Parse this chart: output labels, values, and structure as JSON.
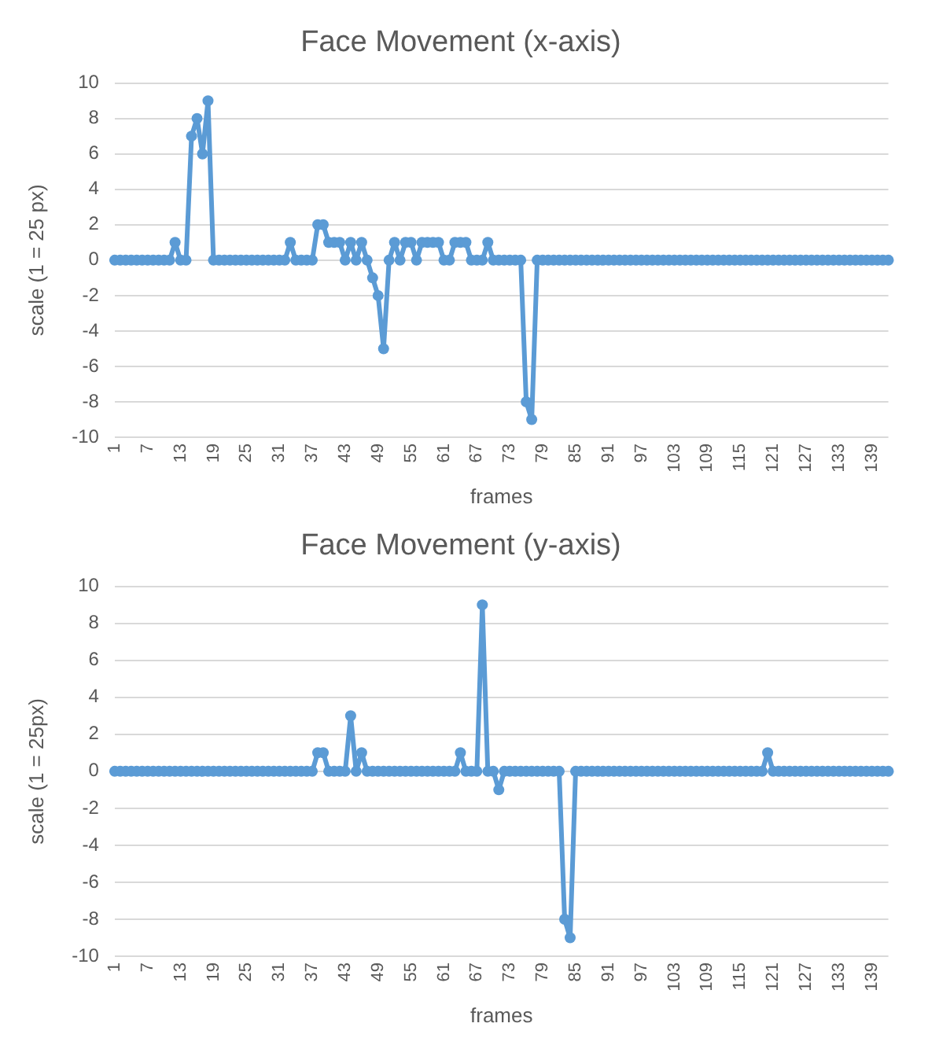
{
  "chart_data": [
    {
      "type": "line",
      "title": "Face Movement (x-axis)",
      "xlabel": "frames",
      "ylabel": "scale (1 = 25 px)",
      "categories": [
        "1",
        null,
        null,
        null,
        null,
        null,
        "7",
        null,
        null,
        null,
        null,
        null,
        "13",
        null,
        null,
        null,
        null,
        null,
        "19",
        null,
        null,
        null,
        null,
        null,
        "25",
        null,
        null,
        null,
        null,
        null,
        "31",
        null,
        null,
        null,
        null,
        null,
        "37",
        null,
        null,
        null,
        null,
        null,
        "43",
        null,
        null,
        null,
        null,
        null,
        "49",
        null,
        null,
        null,
        null,
        null,
        "55",
        null,
        null,
        null,
        null,
        null,
        "61",
        null,
        null,
        null,
        null,
        null,
        "67",
        null,
        null,
        null,
        null,
        null,
        "73",
        null,
        null,
        null,
        null,
        null,
        "79",
        null,
        null,
        null,
        null,
        null,
        "85",
        null,
        null,
        null,
        null,
        null,
        "91",
        null,
        null,
        null,
        null,
        null,
        "97",
        null,
        null,
        null,
        null,
        null,
        "103",
        null,
        null,
        null,
        null,
        null,
        "109",
        null,
        null,
        null,
        null,
        null,
        "115",
        null,
        null,
        null,
        null,
        null,
        "121",
        null,
        null,
        null,
        null,
        null,
        "127",
        null,
        null,
        null,
        null,
        null,
        "133",
        null,
        null,
        null,
        null,
        null,
        "139",
        null,
        null,
        null
      ],
      "values": [
        0,
        0,
        0,
        0,
        0,
        0,
        0,
        0,
        0,
        0,
        0,
        1,
        0,
        0,
        7,
        8,
        6,
        9,
        0,
        0,
        0,
        0,
        0,
        0,
        0,
        0,
        0,
        0,
        0,
        0,
        0,
        0,
        1,
        0,
        0,
        0,
        0,
        2,
        2,
        1,
        1,
        1,
        0,
        1,
        0,
        1,
        0,
        -1,
        -2,
        -5,
        0,
        1,
        0,
        1,
        1,
        0,
        1,
        1,
        1,
        1,
        0,
        0,
        1,
        1,
        1,
        0,
        0,
        0,
        1,
        0,
        0,
        0,
        0,
        0,
        0,
        -8,
        -9,
        0,
        0,
        0,
        0,
        0,
        0,
        0,
        0,
        0,
        0,
        0,
        0,
        0,
        0,
        0,
        0,
        0,
        0,
        0,
        0,
        0,
        0,
        0,
        0,
        0,
        0,
        0,
        0,
        0,
        0,
        0,
        0,
        0,
        0,
        0,
        0,
        0,
        0,
        0,
        0,
        0,
        0,
        0,
        0,
        0,
        0,
        0,
        0,
        0,
        0,
        0,
        0,
        0,
        0,
        0,
        0,
        0,
        0,
        0,
        0,
        0,
        0,
        0,
        0,
        0
      ],
      "color": "#5b9bd5",
      "ylim": [
        -10,
        10
      ],
      "yticks": [
        -10,
        -8,
        -6,
        -4,
        -2,
        0,
        2,
        4,
        6,
        8,
        10
      ],
      "grid": "y",
      "marker": "circle"
    },
    {
      "type": "line",
      "title": "Face Movement (y-axis)",
      "xlabel": "frames",
      "ylabel": "scale (1 = 25px)",
      "categories": [
        "1",
        null,
        null,
        null,
        null,
        null,
        "7",
        null,
        null,
        null,
        null,
        null,
        "13",
        null,
        null,
        null,
        null,
        null,
        "19",
        null,
        null,
        null,
        null,
        null,
        "25",
        null,
        null,
        null,
        null,
        null,
        "31",
        null,
        null,
        null,
        null,
        null,
        "37",
        null,
        null,
        null,
        null,
        null,
        "43",
        null,
        null,
        null,
        null,
        null,
        "49",
        null,
        null,
        null,
        null,
        null,
        "55",
        null,
        null,
        null,
        null,
        null,
        "61",
        null,
        null,
        null,
        null,
        null,
        "67",
        null,
        null,
        null,
        null,
        null,
        "73",
        null,
        null,
        null,
        null,
        null,
        "79",
        null,
        null,
        null,
        null,
        null,
        "85",
        null,
        null,
        null,
        null,
        null,
        "91",
        null,
        null,
        null,
        null,
        null,
        "97",
        null,
        null,
        null,
        null,
        null,
        "103",
        null,
        null,
        null,
        null,
        null,
        "109",
        null,
        null,
        null,
        null,
        null,
        "115",
        null,
        null,
        null,
        null,
        null,
        "121",
        null,
        null,
        null,
        null,
        null,
        "127",
        null,
        null,
        null,
        null,
        null,
        "133",
        null,
        null,
        null,
        null,
        null,
        "139",
        null,
        null,
        null
      ],
      "values": [
        0,
        0,
        0,
        0,
        0,
        0,
        0,
        0,
        0,
        0,
        0,
        0,
        0,
        0,
        0,
        0,
        0,
        0,
        0,
        0,
        0,
        0,
        0,
        0,
        0,
        0,
        0,
        0,
        0,
        0,
        0,
        0,
        0,
        0,
        0,
        0,
        0,
        1,
        1,
        0,
        0,
        0,
        0,
        3,
        0,
        1,
        0,
        0,
        0,
        0,
        0,
        0,
        0,
        0,
        0,
        0,
        0,
        0,
        0,
        0,
        0,
        0,
        0,
        1,
        0,
        0,
        0,
        9,
        0,
        0,
        -1,
        0,
        0,
        0,
        0,
        0,
        0,
        0,
        0,
        0,
        0,
        0,
        -8,
        -9,
        0,
        0,
        0,
        0,
        0,
        0,
        0,
        0,
        0,
        0,
        0,
        0,
        0,
        0,
        0,
        0,
        0,
        0,
        0,
        0,
        0,
        0,
        0,
        0,
        0,
        0,
        0,
        0,
        0,
        0,
        0,
        0,
        0,
        0,
        0,
        1,
        0,
        0,
        0,
        0,
        0,
        0,
        0,
        0,
        0,
        0,
        0,
        0,
        0,
        0,
        0,
        0,
        0,
        0,
        0,
        0,
        0,
        0
      ],
      "color": "#5b9bd5",
      "ylim": [
        -10,
        10
      ],
      "yticks": [
        -10,
        -8,
        -6,
        -4,
        -2,
        0,
        2,
        4,
        6,
        8,
        10
      ],
      "grid": "y",
      "marker": "circle"
    }
  ]
}
